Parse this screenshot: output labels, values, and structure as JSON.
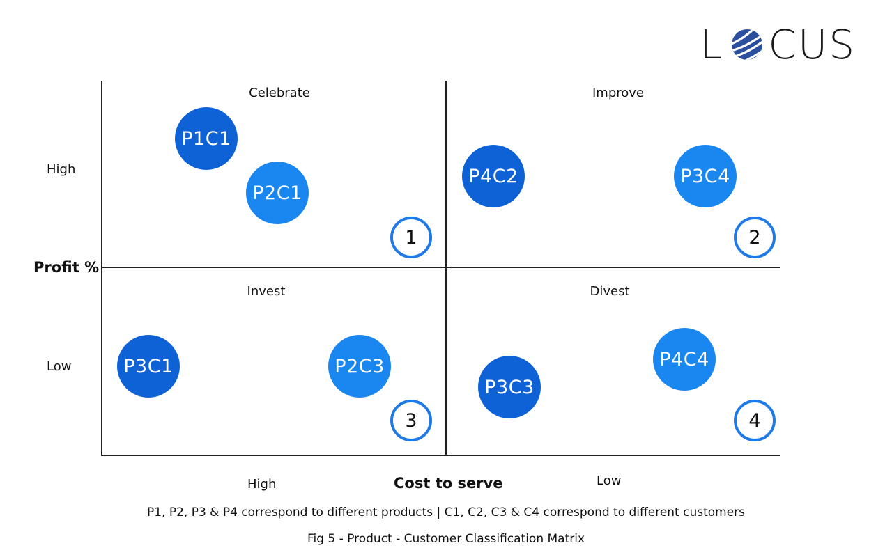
{
  "logo": {
    "left_text": "L",
    "right_text": "CUS",
    "alt": "LOCUS",
    "globe_color": "#2a4f9e"
  },
  "axes": {
    "y_title": "Profit %",
    "y_high": "High",
    "y_low": "Low",
    "x_title": "Cost to serve",
    "x_high": "High",
    "x_low": "Low"
  },
  "quadrants": [
    {
      "number": "1",
      "title": "Celebrate"
    },
    {
      "number": "2",
      "title": "Improve"
    },
    {
      "number": "3",
      "title": "Invest"
    },
    {
      "number": "4",
      "title": "Divest"
    }
  ],
  "bubbles": [
    {
      "label": "P1C1",
      "quadrant": "1",
      "color": "#0f62d6"
    },
    {
      "label": "P2C1",
      "quadrant": "1",
      "color": "#1a86ef"
    },
    {
      "label": "P4C2",
      "quadrant": "2",
      "color": "#0f62d6"
    },
    {
      "label": "P3C4",
      "quadrant": "2",
      "color": "#1a86ef"
    },
    {
      "label": "P3C1",
      "quadrant": "3",
      "color": "#0f62d6"
    },
    {
      "label": "P2C3",
      "quadrant": "3",
      "color": "#1a86ef"
    },
    {
      "label": "P3C3",
      "quadrant": "4",
      "color": "#0f62d6"
    },
    {
      "label": "P4C4",
      "quadrant": "4",
      "color": "#1a86ef"
    }
  ],
  "colors": {
    "accent_ring": "#1f7ae8",
    "dark_bubble": "#0f62d6",
    "light_bubble": "#1a86ef"
  },
  "footnote": "P1, P2, P3 & P4 correspond to different products | C1, C2, C3 & C4 correspond to different customers",
  "caption": "Fig 5 - Product - Customer Classification Matrix"
}
